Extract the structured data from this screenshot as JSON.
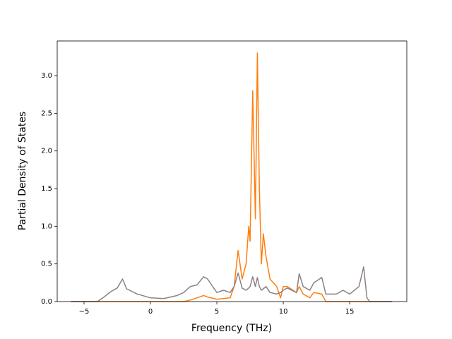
{
  "chart_data": {
    "type": "line",
    "x_label": "Frequency (THz)",
    "y_label": "Partial Density of States",
    "x": [
      -6,
      -4,
      -3.5,
      -3,
      -2.5,
      -2.1,
      -1.8,
      -1,
      0,
      1,
      2,
      2.5,
      3,
      3.5,
      4,
      4.3,
      4.8,
      5,
      5.5,
      6,
      6.3,
      6.6,
      6.9,
      7.2,
      7.4,
      7.5,
      7.7,
      7.9,
      8.05,
      8.2,
      8.35,
      8.5,
      8.7,
      9,
      9.5,
      9.8,
      10,
      10.3,
      11,
      11.2,
      11.5,
      12,
      12.3,
      12.9,
      13.2,
      14,
      14.5,
      15,
      15.7,
      16.05,
      16.3,
      16.5,
      18.2
    ],
    "series": [
      {
        "color": "#ff7f0e",
        "values": [
          0,
          0,
          0,
          0,
          0,
          0,
          0,
          0,
          0,
          0,
          0,
          0,
          0.02,
          0.05,
          0.08,
          0.06,
          0.04,
          0.03,
          0.04,
          0.05,
          0.2,
          0.68,
          0.3,
          0.5,
          1.0,
          0.8,
          2.8,
          1.1,
          3.3,
          1.5,
          0.5,
          0.9,
          0.6,
          0.3,
          0.2,
          0.05,
          0.2,
          0.2,
          0.12,
          0.2,
          0.1,
          0.05,
          0.12,
          0.1,
          0,
          0,
          0,
          0,
          0,
          0,
          0,
          0,
          0
        ]
      },
      {
        "color": "#8c7f86",
        "values": [
          0,
          0,
          0.06,
          0.13,
          0.18,
          0.3,
          0.17,
          0.1,
          0.05,
          0.04,
          0.08,
          0.12,
          0.2,
          0.22,
          0.33,
          0.3,
          0.17,
          0.12,
          0.15,
          0.12,
          0.2,
          0.38,
          0.18,
          0.15,
          0.18,
          0.2,
          0.33,
          0.2,
          0.32,
          0.2,
          0.15,
          0.17,
          0.2,
          0.12,
          0.1,
          0.12,
          0.15,
          0.18,
          0.12,
          0.37,
          0.2,
          0.15,
          0.25,
          0.32,
          0.1,
          0.1,
          0.15,
          0.1,
          0.2,
          0.46,
          0.05,
          0,
          0
        ]
      }
    ],
    "xlim": [
      -7.02,
      19.3
    ],
    "xticks": [
      {
        "value": -5,
        "label": "−5"
      },
      0,
      5,
      10,
      15
    ],
    "ylim": [
      0,
      3.46
    ],
    "yticks": [
      {
        "value": 0,
        "label": "0.0"
      },
      0.5,
      {
        "value": 1,
        "label": "1.0"
      },
      1.5,
      {
        "value": 2,
        "label": "2.0"
      },
      2.5,
      {
        "value": 3,
        "label": "3.0"
      }
    ]
  }
}
